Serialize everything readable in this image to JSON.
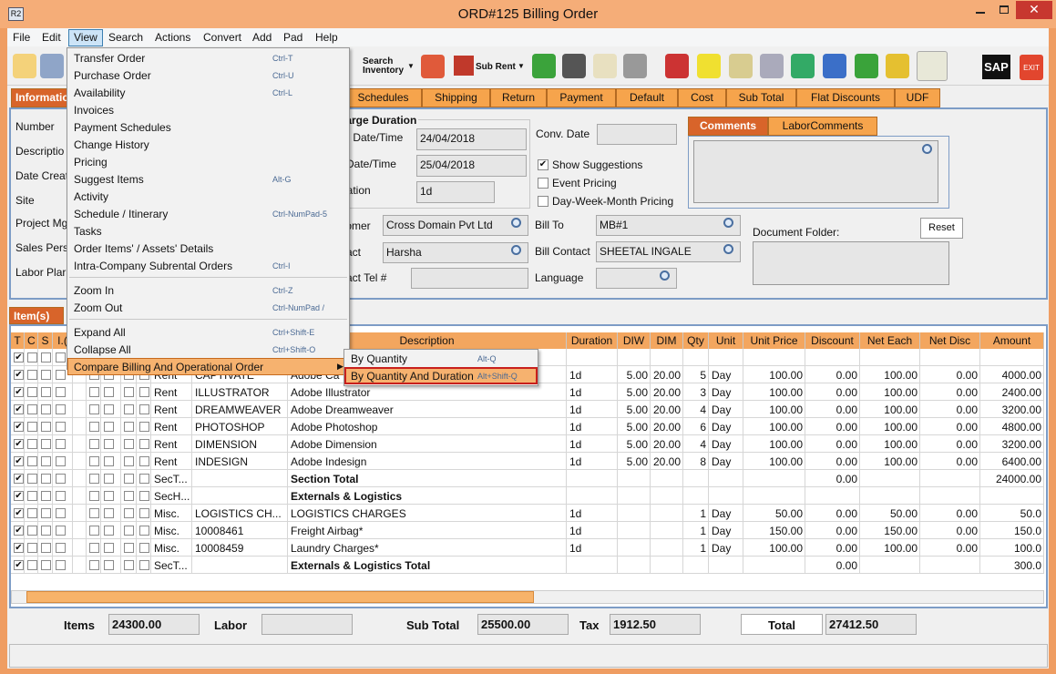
{
  "window": {
    "icon": "R2",
    "title": "ORD#125 Billing Order"
  },
  "menu_bar": [
    "File",
    "Edit",
    "View",
    "Search",
    "Actions",
    "Convert",
    "Add",
    "Pad",
    "Help"
  ],
  "toolbar": {
    "search_inventory": "Search Inventory",
    "sub_rent": "Sub Rent",
    "sap": "SAP",
    "exit": "EXIT"
  },
  "tabs": [
    "Informatio",
    "Schedules",
    "Shipping",
    "Return",
    "Payment",
    "Default",
    "Cost",
    "Sub Total",
    "Flat Discounts",
    "UDF"
  ],
  "header": {
    "labels": [
      "Number",
      "Descriptio",
      "Date Creat",
      "Site",
      "Project Mg",
      "Sales Pers",
      "Labor Plar"
    ],
    "charge_duration": {
      "title": "harge Duration",
      "fields": [
        {
          "label": "art Date/Time",
          "value": "24/04/2018"
        },
        {
          "label": "d Date/Time",
          "value": "25/04/2018"
        },
        {
          "label": "uration",
          "value": "1d"
        }
      ]
    },
    "customer": {
      "label": "stomer",
      "value": "Cross Domain Pvt Ltd"
    },
    "contact": {
      "label": "ntact",
      "value": "Harsha"
    },
    "contact_tel": {
      "label": "ntact Tel #"
    },
    "conv_date": {
      "label": "Conv. Date"
    },
    "options": [
      {
        "label": "Show Suggestions",
        "checked": true
      },
      {
        "label": "Event Pricing",
        "checked": false
      },
      {
        "label": "Day-Week-Month Pricing",
        "checked": false
      }
    ],
    "bill_to": {
      "label": "Bill To",
      "value": "MB#1"
    },
    "bill_contact": {
      "label": "Bill Contact",
      "value": "SHEETAL INGALE"
    },
    "language": {
      "label": "Language"
    },
    "comment_tabs": [
      "Comments",
      "LaborComments"
    ],
    "document_folder": "Document Folder:",
    "reset": "Reset"
  },
  "items_tab": "Item(s)",
  "grid": {
    "columns": [
      "T",
      "C",
      "S",
      "I.(",
      null,
      null,
      null,
      null,
      null,
      null,
      null,
      "Description",
      "Duration",
      "DIW",
      "DIM",
      "Qty",
      "Unit",
      "Unit Price",
      "Discount",
      "Net Each",
      "Net Disc",
      "Amount"
    ],
    "rows": [
      {
        "type": "Rent",
        "code": "CAPTIVATE",
        "description": "Adobe Ca",
        "duration": "1d",
        "diw": "5.00",
        "dim": "20.00",
        "qty": "5",
        "unit": "Day",
        "unit_price": "100.00",
        "discount": "0.00",
        "net_each": "100.00",
        "net_disc": "0.00",
        "amount": "4000.00"
      },
      {
        "type": "Rent",
        "code": "ILLUSTRATOR",
        "description": "Adobe Illustrator",
        "duration": "1d",
        "diw": "5.00",
        "dim": "20.00",
        "qty": "3",
        "unit": "Day",
        "unit_price": "100.00",
        "discount": "0.00",
        "net_each": "100.00",
        "net_disc": "0.00",
        "amount": "2400.00"
      },
      {
        "type": "Rent",
        "code": "DREAMWEAVER",
        "description": "Adobe Dreamweaver",
        "duration": "1d",
        "diw": "5.00",
        "dim": "20.00",
        "qty": "4",
        "unit": "Day",
        "unit_price": "100.00",
        "discount": "0.00",
        "net_each": "100.00",
        "net_disc": "0.00",
        "amount": "3200.00"
      },
      {
        "type": "Rent",
        "code": "PHOTOSHOP",
        "description": "Adobe Photoshop",
        "duration": "1d",
        "diw": "5.00",
        "dim": "20.00",
        "qty": "6",
        "unit": "Day",
        "unit_price": "100.00",
        "discount": "0.00",
        "net_each": "100.00",
        "net_disc": "0.00",
        "amount": "4800.00"
      },
      {
        "type": "Rent",
        "code": "DIMENSION",
        "description": "Adobe Dimension",
        "duration": "1d",
        "diw": "5.00",
        "dim": "20.00",
        "qty": "4",
        "unit": "Day",
        "unit_price": "100.00",
        "discount": "0.00",
        "net_each": "100.00",
        "net_disc": "0.00",
        "amount": "3200.00"
      },
      {
        "type": "Rent",
        "code": "INDESIGN",
        "description": "Adobe Indesign",
        "duration": "1d",
        "diw": "5.00",
        "dim": "20.00",
        "qty": "8",
        "unit": "Day",
        "unit_price": "100.00",
        "discount": "0.00",
        "net_each": "100.00",
        "net_disc": "0.00",
        "amount": "6400.00"
      },
      {
        "type": "SecT...",
        "description": "Section Total",
        "discount": "0.00",
        "amount": "24000.00",
        "bold": true
      },
      {
        "type": "SecH...",
        "description": "Externals & Logistics",
        "bold": true
      },
      {
        "type": "Misc.",
        "code": "LOGISTICS CH...",
        "description": "LOGISTICS CHARGES",
        "duration": "1d",
        "qty": "1",
        "unit": "Day",
        "unit_price": "50.00",
        "discount": "0.00",
        "net_each": "50.00",
        "net_disc": "0.00",
        "amount": "50.0"
      },
      {
        "type": "Misc.",
        "code": "10008461",
        "description": "Freight Airbag*",
        "duration": "1d",
        "qty": "1",
        "unit": "Day",
        "unit_price": "150.00",
        "discount": "0.00",
        "net_each": "150.00",
        "net_disc": "0.00",
        "amount": "150.0"
      },
      {
        "type": "Misc.",
        "code": "10008459",
        "description": "Laundry Charges*",
        "duration": "1d",
        "qty": "1",
        "unit": "Day",
        "unit_price": "100.00",
        "discount": "0.00",
        "net_each": "100.00",
        "net_disc": "0.00",
        "amount": "100.0"
      },
      {
        "type": "SecT...",
        "description": "Externals & Logistics Total",
        "discount": "0.00",
        "amount": "300.0",
        "bold": true
      }
    ]
  },
  "totals": [
    {
      "label": "Items",
      "value": "24300.00"
    },
    {
      "label": "Labor"
    },
    {
      "label": "Sub Total",
      "value": "25500.00"
    },
    {
      "label": "Tax",
      "value": "1912.50"
    },
    {
      "label": "Total",
      "value": "27412.50"
    }
  ],
  "view_menu": [
    [
      {
        "label": "Transfer Order",
        "shortcut": "Ctrl-T"
      },
      {
        "label": "Purchase Order",
        "shortcut": "Ctrl-U"
      },
      {
        "label": "Availability",
        "shortcut": "Ctrl-L"
      },
      {
        "label": "Invoices"
      },
      {
        "label": "Payment Schedules"
      },
      {
        "label": "Change History"
      },
      {
        "label": "Pricing"
      },
      {
        "label": "Suggest Items",
        "shortcut": "Alt-G"
      },
      {
        "label": "Activity"
      },
      {
        "label": "Schedule / Itinerary",
        "shortcut": "Ctrl-NumPad-5"
      },
      {
        "label": "Tasks"
      },
      {
        "label": "Order Items' / Assets' Details"
      },
      {
        "label": "Intra-Company Subrental Orders",
        "shortcut": "Ctrl-I"
      }
    ],
    [
      {
        "label": "Zoom In",
        "shortcut": "Ctrl-Z"
      },
      {
        "label": "Zoom Out",
        "shortcut": "Ctrl-NumPad /"
      }
    ],
    [
      {
        "label": "Expand All",
        "shortcut": "Ctrl+Shift-E"
      },
      {
        "label": "Collapse All",
        "shortcut": "Ctrl+Shift-O"
      },
      {
        "label": "Compare Billing And Operational Order"
      }
    ]
  ],
  "submenu": [
    {
      "label": "By Quantity",
      "shortcut": "Alt-Q"
    },
    {
      "label": "By Quantity And Duration",
      "shortcut": "Alt+Shift-Q"
    }
  ]
}
